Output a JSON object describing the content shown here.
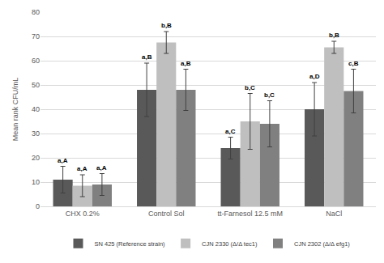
{
  "chart_data": {
    "type": "bar",
    "y_label": "Mean rank CFU/mL",
    "categories": [
      "CHX 0.2%",
      "Control Sol",
      "tt-Farnesol 12.5 mM",
      "NaCl"
    ],
    "series": [
      {
        "name": "SN 425 (Reference strain)",
        "color": "#595959",
        "values": [
          11,
          48,
          24,
          40
        ],
        "errors": [
          5.5,
          11,
          4.5,
          11
        ],
        "annotations": [
          "a,A",
          "a,B",
          "a,C",
          "a,D"
        ]
      },
      {
        "name": "CJN 2330 (Δ/Δ tec1)",
        "color": "#bfbfbf",
        "values": [
          8.5,
          67.5,
          35,
          65.5
        ],
        "errors": [
          4.5,
          4.5,
          11.5,
          2.5
        ],
        "annotations": [
          "a,A",
          "b,B",
          "b,C",
          "b,B"
        ]
      },
      {
        "name": "CJN 2302 (Δ/Δ efg1)",
        "color": "#808080",
        "values": [
          9,
          48,
          34,
          47.5
        ],
        "errors": [
          4.5,
          8.5,
          9.5,
          9
        ],
        "annotations": [
          "a,A",
          "a,B",
          "b,C",
          "c,B"
        ]
      }
    ],
    "ylim": [
      0,
      80
    ],
    "yticks": [
      0,
      10,
      20,
      30,
      40,
      50,
      60,
      70,
      80
    ],
    "grid": true,
    "legend": "bottom"
  }
}
